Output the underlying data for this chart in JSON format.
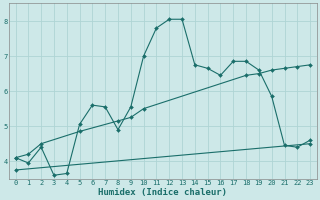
{
  "xlabel": "Humidex (Indice chaleur)",
  "xlim": [
    -0.5,
    23.5
  ],
  "ylim": [
    3.5,
    8.5
  ],
  "yticks": [
    4,
    5,
    6,
    7,
    8
  ],
  "xticks": [
    0,
    1,
    2,
    3,
    4,
    5,
    6,
    7,
    8,
    9,
    10,
    11,
    12,
    13,
    14,
    15,
    16,
    17,
    18,
    19,
    20,
    21,
    22,
    23
  ],
  "bg_color": "#cde8e8",
  "line_color": "#1a6e6a",
  "grid_color": "#afd4d4",
  "line1_x": [
    0,
    1,
    2,
    3,
    4,
    5,
    6,
    7,
    8,
    9,
    10,
    11,
    12,
    13,
    14,
    15,
    16,
    17,
    18,
    19,
    20,
    21,
    22,
    23
  ],
  "line1_y": [
    4.1,
    3.95,
    4.4,
    3.6,
    3.65,
    5.05,
    5.6,
    5.55,
    4.9,
    5.55,
    7.0,
    7.8,
    8.05,
    8.05,
    6.75,
    6.65,
    6.45,
    6.85,
    6.85,
    6.6,
    5.85,
    4.45,
    4.4,
    4.6
  ],
  "line2_x": [
    0,
    1,
    2,
    5,
    8,
    9,
    10,
    18,
    19,
    20,
    21,
    22,
    23
  ],
  "line2_y": [
    4.1,
    4.2,
    4.5,
    4.85,
    5.15,
    5.25,
    5.5,
    6.45,
    6.5,
    6.6,
    6.65,
    6.7,
    6.75
  ],
  "line3_x": [
    0,
    23
  ],
  "line3_y": [
    3.75,
    4.5
  ]
}
